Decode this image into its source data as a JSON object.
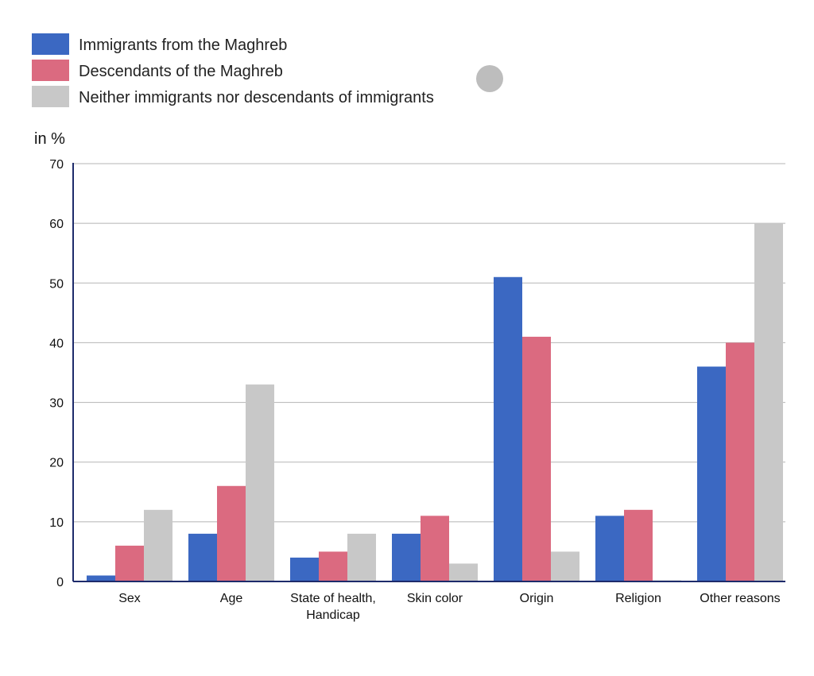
{
  "chart_data": {
    "type": "bar",
    "title": "",
    "xlabel": "",
    "ylabel": "in %",
    "ylim": [
      0,
      70
    ],
    "yticks": [
      "0",
      "10",
      "20",
      "30",
      "40",
      "50",
      "60",
      "70"
    ],
    "grid": true,
    "legend_placement": "top-left",
    "categories": [
      [
        "Sex"
      ],
      [
        "Age"
      ],
      [
        "State of health,",
        "Handicap"
      ],
      [
        "Skin color"
      ],
      [
        "Origin"
      ],
      [
        "Religion"
      ],
      [
        "Other reasons"
      ]
    ],
    "series": [
      {
        "name": "Immigrants from the Maghreb",
        "color": "#3b68c2",
        "values": [
          1,
          8,
          4,
          8,
          51,
          11,
          36
        ]
      },
      {
        "name": "Descendants of the Maghreb",
        "color": "#db6a80",
        "values": [
          6,
          16,
          5,
          11,
          41,
          12,
          40
        ]
      },
      {
        "name": "Neither immigrants nor descendants of immigrants",
        "color": "#c8c8c8",
        "values": [
          12,
          33,
          8,
          3,
          5,
          0,
          60
        ]
      }
    ],
    "colors": {
      "axis": "#1d2b6b",
      "grid": "#b5b5b5",
      "marker": "#bdbdbd"
    }
  }
}
